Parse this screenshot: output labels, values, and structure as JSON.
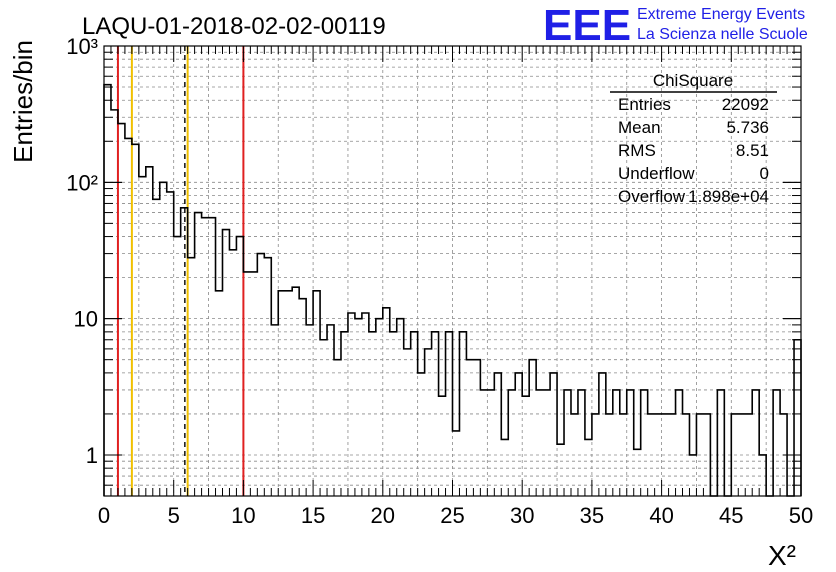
{
  "title": "LAQU-01-2018-02-02-00119",
  "logo": {
    "text": "EEE",
    "line1": "Extreme Energy Events",
    "line2": "La Scienza nelle Scuole",
    "color": "#1f1fe6"
  },
  "stats_box": {
    "title": "ChiSquare",
    "rows": [
      {
        "label": "Entries",
        "value": "22092"
      },
      {
        "label": "Mean",
        "value": "5.736"
      },
      {
        "label": "RMS",
        "value": "8.51"
      },
      {
        "label": "Underflow",
        "value": "0"
      },
      {
        "label": "Overflow",
        "value": "1.898e+04"
      }
    ]
  },
  "chart_data": {
    "type": "histogram",
    "title": "LAQU-01-2018-02-02-00119",
    "xlabel": "X²",
    "ylabel": "Entries/bin",
    "xlim": [
      0,
      50
    ],
    "ylim": [
      0.5,
      1000
    ],
    "yscale": "log",
    "grid": true,
    "bin_width": 0.5,
    "x_ticks": [
      "0",
      "5",
      "10",
      "15",
      "20",
      "25",
      "30",
      "35",
      "40",
      "45",
      "50"
    ],
    "y_ticks": [
      "1",
      "10",
      "10²",
      "10³"
    ],
    "counts": [
      520,
      340,
      270,
      210,
      190,
      110,
      130,
      75,
      100,
      85,
      40,
      65,
      28,
      60,
      55,
      55,
      16,
      45,
      32,
      40,
      22,
      22,
      30,
      28,
      9,
      16,
      16,
      17,
      14,
      9,
      16,
      7,
      9,
      5,
      8,
      11,
      10,
      11,
      8,
      10,
      12,
      8,
      10,
      6,
      8,
      4,
      6,
      8,
      2.7,
      8,
      1.5,
      8,
      5,
      5,
      3,
      3,
      4,
      1.3,
      3,
      4,
      2.7,
      5,
      3,
      3,
      4,
      1.2,
      3,
      2,
      3,
      1.3,
      2,
      4,
      2,
      3,
      2,
      3,
      1.1,
      3,
      2,
      2,
      2,
      2,
      3,
      2,
      1.0,
      2,
      2,
      0.4,
      3,
      0.4,
      2,
      2,
      2,
      3,
      1,
      0.4,
      3,
      2,
      0.4,
      7
    ],
    "vertical_lines": [
      {
        "x": 1.0,
        "color": "#e02020",
        "style": "solid"
      },
      {
        "x": 2.0,
        "color": "#f0c000",
        "style": "solid"
      },
      {
        "x": 5.8,
        "color": "#000000",
        "style": "dashed"
      },
      {
        "x": 6.0,
        "color": "#f0c000",
        "style": "solid"
      },
      {
        "x": 10.0,
        "color": "#e02020",
        "style": "solid"
      }
    ]
  }
}
